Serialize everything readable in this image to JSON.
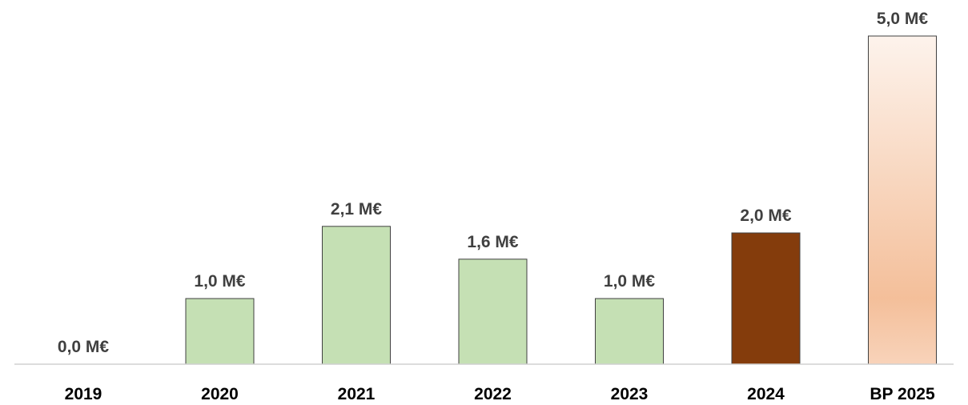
{
  "chart_data": {
    "type": "bar",
    "title": "",
    "xlabel": "",
    "ylabel": "",
    "unit": "M€",
    "categories": [
      "2019",
      "2020",
      "2021",
      "2022",
      "2023",
      "2024",
      "BP 2025"
    ],
    "values": [
      0.0,
      1.0,
      2.1,
      1.6,
      1.0,
      2.0,
      5.0
    ],
    "data_labels": [
      "0,0 M€",
      "1,0 M€",
      "2,1 M€",
      "1,6 M€",
      "1,0 M€",
      "2,0 M€",
      "5,0 M€"
    ],
    "ylim": [
      0,
      5.0
    ],
    "grid": false,
    "legend": "none",
    "bar_styles": [
      "actual",
      "actual",
      "actual",
      "actual",
      "actual",
      "current",
      "plan"
    ],
    "colors": {
      "actual_fill": "#c5e0b4",
      "current_fill": "#843c0c",
      "plan_fill_top": "#fdf3ec",
      "plan_fill_bottom": "#f4bf9a",
      "bar_outline": "#404040",
      "axis": "#d0d0d0",
      "category_text": "#000000",
      "label_text": "#404040"
    }
  }
}
